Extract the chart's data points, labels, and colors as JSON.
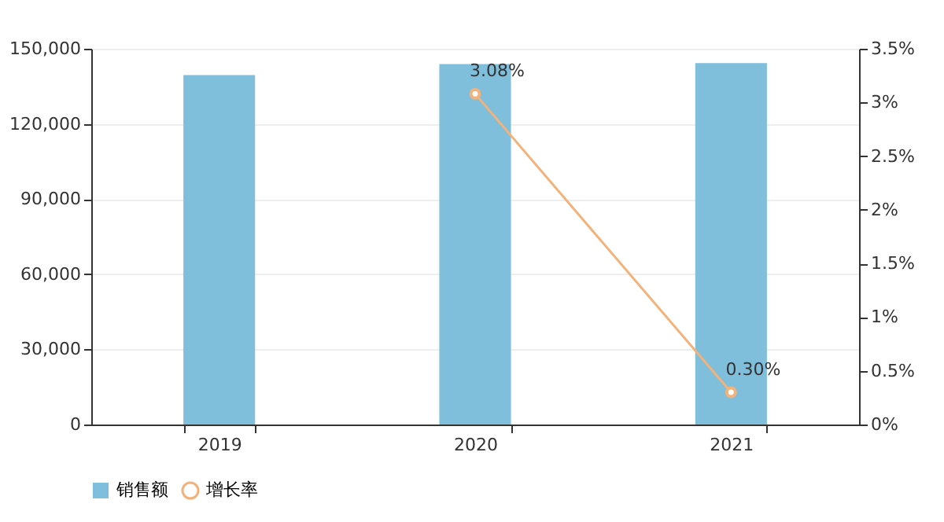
{
  "chart_data": {
    "type": "bar",
    "categories": [
      "2019",
      "2020",
      "2021"
    ],
    "series": [
      {
        "name": "销售额",
        "color": "#7fbfdc",
        "values": [
          139500,
          143900,
          144300
        ]
      },
      {
        "name": "增长率",
        "type": "line",
        "axis": "y2",
        "color": "#f2b27a",
        "values": [
          null,
          3.08,
          0.3
        ],
        "value_labels": [
          null,
          "3.08%",
          "0.30%"
        ],
        "marker": "circle"
      }
    ],
    "ylim": [
      0,
      150000
    ],
    "yticks": [
      0,
      {
        "value": 30000,
        "label": "30,000"
      },
      {
        "value": 60000,
        "label": "60,000"
      },
      {
        "value": 90000,
        "label": "90,000"
      },
      {
        "value": 120000,
        "label": "120,000"
      },
      {
        "value": 150000,
        "label": "150,000"
      }
    ],
    "y2lim": [
      0,
      3.5
    ],
    "y2ticks": [
      {
        "value": 0,
        "label": "0%"
      },
      {
        "value": 0.5,
        "label": "0.5%"
      },
      {
        "value": 1,
        "label": "1%"
      },
      {
        "value": 1.5,
        "label": "1.5%"
      },
      {
        "value": 2,
        "label": "2%"
      },
      {
        "value": 2.5,
        "label": "2.5%"
      },
      {
        "value": 3,
        "label": "3%"
      },
      {
        "value": 3.5,
        "label": "3.5%"
      }
    ],
    "grid": "y",
    "legend": "bottom"
  }
}
